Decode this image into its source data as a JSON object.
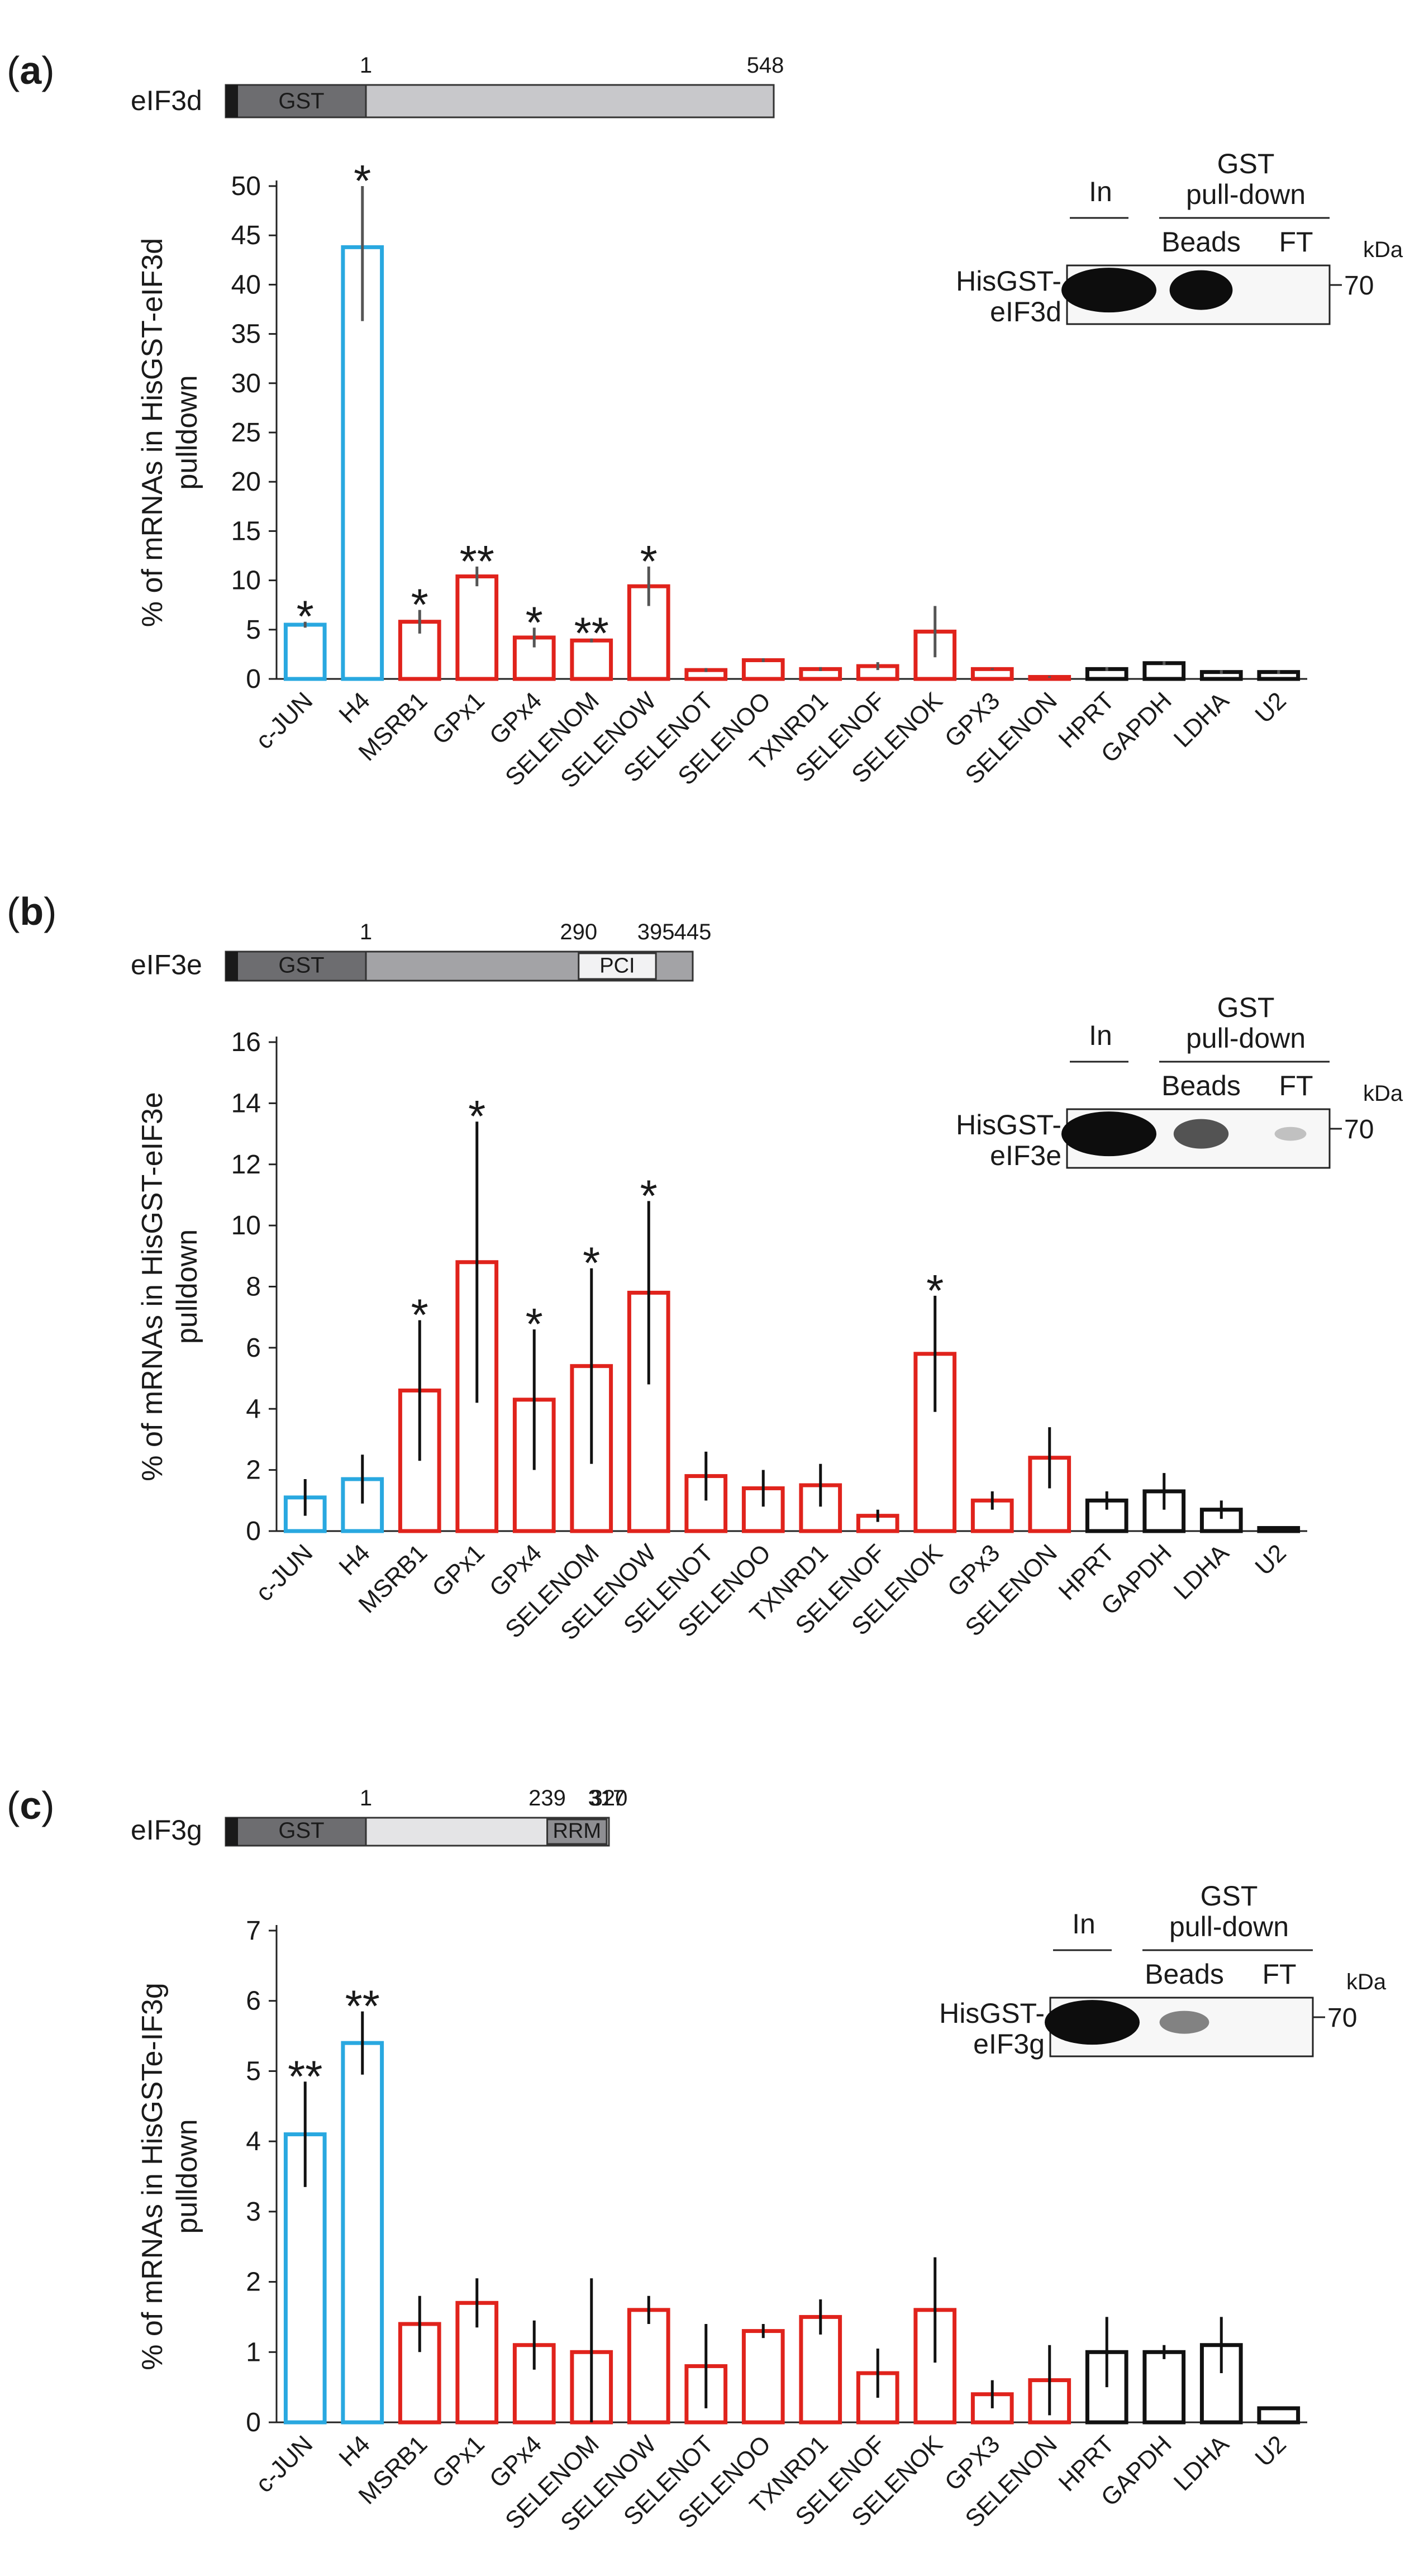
{
  "figure": {
    "panels": [
      {
        "label": "a",
        "domain": {
          "protein": "eIF3d",
          "gst_label": "GST",
          "positions": [
            {
              "value": "1",
              "at": 1
            },
            {
              "value": "548",
              "at": 548
            }
          ],
          "max": 548,
          "extra_box": null
        },
        "western": {
          "in": "In",
          "gst_line1": "GST",
          "gst_line2": "pull-down",
          "beads": "Beads",
          "ft": "FT",
          "kda": "kDa",
          "marker": "70",
          "name1": "HisGST-",
          "name2": "eIF3d",
          "band_strength": [
            1.0,
            0.85,
            0.0
          ]
        }
      },
      {
        "label": "b",
        "domain": {
          "protein": "eIF3e",
          "gst_label": "GST",
          "positions": [
            {
              "value": "1",
              "at": 1
            },
            {
              "value": "290",
              "at": 290
            },
            {
              "value": "395",
              "at": 395
            },
            {
              "value": "445",
              "at": 445
            }
          ],
          "max": 445,
          "extra_box": {
            "label": "PCI",
            "start": 290,
            "end": 395
          }
        },
        "western": {
          "in": "In",
          "gst_line1": "GST",
          "gst_line2": "pull-down",
          "beads": "Beads",
          "ft": "FT",
          "kda": "kDa",
          "marker": "70",
          "name1": "HisGST-",
          "name2": "eIF3e",
          "band_strength": [
            1.0,
            0.55,
            0.08
          ]
        }
      },
      {
        "label": "c",
        "domain": {
          "protein": "eIF3g",
          "gst_label": "GST",
          "positions": [
            {
              "value": "1",
              "at": 1
            },
            {
              "value": "239",
              "at": 239
            },
            {
              "value": "317",
              "at": 317
            },
            {
              "value": "320",
              "at": 320
            }
          ],
          "max": 320,
          "extra_box": {
            "label": "RRM",
            "start": 239,
            "end": 317
          }
        },
        "western": {
          "in": "In",
          "gst_line1": "GST",
          "gst_line2": "pull-down",
          "beads": "Beads",
          "ft": "FT",
          "kda": "kDa",
          "marker": "70",
          "name1": "HisGST-",
          "name2": "eIF3g",
          "band_strength": [
            1.0,
            0.35,
            0.0
          ]
        }
      }
    ]
  },
  "chart_data": [
    {
      "type": "bar",
      "panel": "a",
      "title": "",
      "ylabel": "% of mRNAs in HisGST-eIF3d pulldown",
      "ylabel_lines": [
        "% of mRNAs in HisGST-eIF3d",
        "pulldown"
      ],
      "xlabel": "",
      "ylim": [
        0,
        50
      ],
      "yticks": [
        0,
        5,
        10,
        15,
        20,
        25,
        30,
        35,
        40,
        45,
        50
      ],
      "categories": [
        "c-JUN",
        "H4",
        "MSRB1",
        "GPx1",
        "GPx4",
        "SELENOM",
        "SELENOW",
        "SELENOT",
        "SELENOO",
        "TXNRD1",
        "SELENOF",
        "SELENOK",
        "GPX3",
        "SELENON",
        "HPRT",
        "GAPDH",
        "LDHA",
        "U2"
      ],
      "values": [
        5.5,
        43.8,
        5.8,
        10.4,
        4.2,
        3.9,
        9.4,
        0.9,
        1.9,
        1.0,
        1.3,
        4.8,
        1.0,
        0.2,
        1.0,
        1.6,
        0.7,
        0.7
      ],
      "errors": [
        0.3,
        7.5,
        1.2,
        1.0,
        1.0,
        0.2,
        2.0,
        0.2,
        0.2,
        0.2,
        0.4,
        2.6,
        0.1,
        0.1,
        0.2,
        0.2,
        0.2,
        0.2
      ],
      "significance": [
        "*",
        "*",
        "*",
        "**",
        "*",
        "**",
        "*",
        "",
        "",
        "",
        "",
        "",
        "",
        "",
        "",
        "",
        "",
        ""
      ],
      "bar_colors": [
        "#29a8e0",
        "#29a8e0",
        "#e0231c",
        "#e0231c",
        "#e0231c",
        "#e0231c",
        "#e0231c",
        "#e0231c",
        "#e0231c",
        "#e0231c",
        "#e0231c",
        "#e0231c",
        "#e0231c",
        "#e0231c",
        "#111111",
        "#111111",
        "#111111",
        "#111111"
      ],
      "error_color": "#555555",
      "grid": false
    },
    {
      "type": "bar",
      "panel": "b",
      "title": "",
      "ylabel": "% of mRNAs in HisGST-eIF3e pulldown",
      "ylabel_lines": [
        "% of mRNAs in HisGST-eIF3e",
        "pulldown"
      ],
      "xlabel": "",
      "ylim": [
        0,
        16
      ],
      "yticks": [
        0,
        2,
        4,
        6,
        8,
        10,
        12,
        14,
        16
      ],
      "categories": [
        "c-JUN",
        "H4",
        "MSRB1",
        "GPx1",
        "GPx4",
        "SELENOM",
        "SELENOW",
        "SELENOT",
        "SELENOO",
        "TXNRD1",
        "SELENOF",
        "SELENOK",
        "GPx3",
        "SELENON",
        "HPRT",
        "GAPDH",
        "LDHA",
        "U2"
      ],
      "values": [
        1.1,
        1.7,
        4.6,
        8.8,
        4.3,
        5.4,
        7.8,
        1.8,
        1.4,
        1.5,
        0.5,
        5.8,
        1.0,
        2.4,
        1.0,
        1.3,
        0.7,
        0.1
      ],
      "errors": [
        0.6,
        0.8,
        2.3,
        4.6,
        2.3,
        3.2,
        3.0,
        0.8,
        0.6,
        0.7,
        0.2,
        1.9,
        0.3,
        1.0,
        0.3,
        0.6,
        0.3,
        0.0
      ],
      "significance": [
        "",
        "",
        "*",
        "*",
        "*",
        "*",
        "*",
        "",
        "",
        "",
        "",
        "*",
        "",
        "",
        "",
        "",
        "",
        ""
      ],
      "bar_colors": [
        "#29a8e0",
        "#29a8e0",
        "#e0231c",
        "#e0231c",
        "#e0231c",
        "#e0231c",
        "#e0231c",
        "#e0231c",
        "#e0231c",
        "#e0231c",
        "#e0231c",
        "#e0231c",
        "#e0231c",
        "#e0231c",
        "#111111",
        "#111111",
        "#111111",
        "#111111"
      ],
      "error_color": "#111111",
      "grid": false
    },
    {
      "type": "bar",
      "panel": "c",
      "title": "",
      "ylabel": "% of mRNAs in HisGSTe-IF3g pulldown",
      "ylabel_lines": [
        "% of mRNAs in HisGSTe-IF3g",
        "pulldown"
      ],
      "xlabel": "",
      "ylim": [
        0,
        7
      ],
      "yticks": [
        0,
        1,
        2,
        3,
        4,
        5,
        6,
        7
      ],
      "categories": [
        "c-JUN",
        "H4",
        "MSRB1",
        "GPx1",
        "GPx4",
        "SELENOM",
        "SELENOW",
        "SELENOT",
        "SELENOO",
        "TXNRD1",
        "SELENOF",
        "SELENOK",
        "GPX3",
        "SELENON",
        "HPRT",
        "GAPDH",
        "LDHA",
        "U2"
      ],
      "values": [
        4.1,
        5.4,
        1.4,
        1.7,
        1.1,
        1.0,
        1.6,
        0.8,
        1.3,
        1.5,
        0.7,
        1.6,
        0.4,
        0.6,
        1.0,
        1.0,
        1.1,
        0.2
      ],
      "errors": [
        0.75,
        0.45,
        0.4,
        0.35,
        0.35,
        1.05,
        0.2,
        0.6,
        0.1,
        0.25,
        0.35,
        0.75,
        0.2,
        0.5,
        0.5,
        0.1,
        0.4,
        0.0
      ],
      "significance": [
        "**",
        "**",
        "",
        "",
        "",
        "",
        "",
        "",
        "",
        "",
        "",
        "",
        "",
        "",
        "",
        "",
        "",
        ""
      ],
      "bar_colors": [
        "#29a8e0",
        "#29a8e0",
        "#e0231c",
        "#e0231c",
        "#e0231c",
        "#e0231c",
        "#e0231c",
        "#e0231c",
        "#e0231c",
        "#e0231c",
        "#e0231c",
        "#e0231c",
        "#e0231c",
        "#e0231c",
        "#111111",
        "#111111",
        "#111111",
        "#111111"
      ],
      "error_color": "#111111",
      "grid": false
    }
  ]
}
